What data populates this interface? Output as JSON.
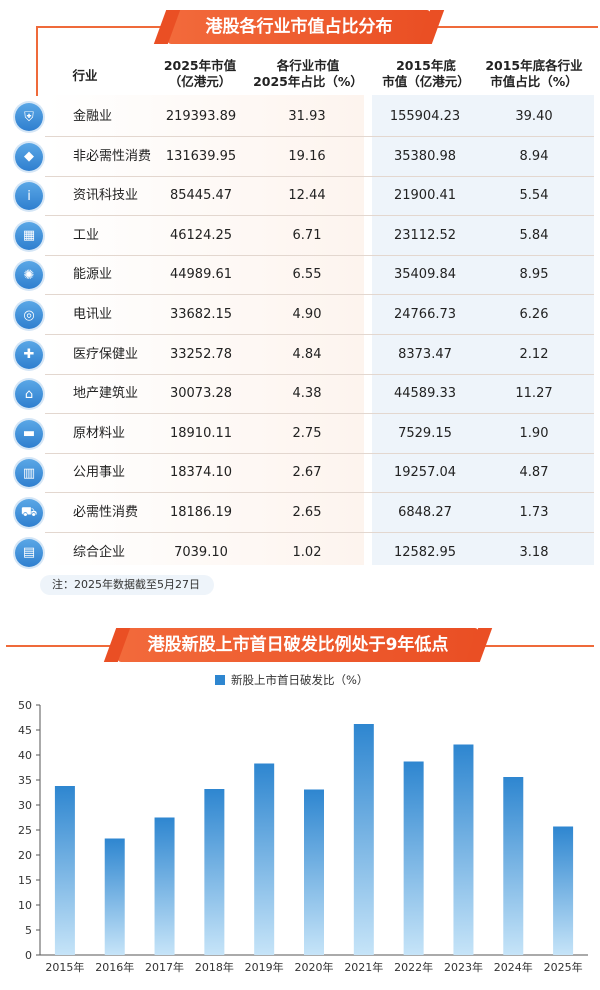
{
  "table_title": "港股各行业市值占比分布",
  "headers": {
    "industry": "行业",
    "mv2025_line1": "2025年市值",
    "mv2025_line2": "（亿港元）",
    "pct2025_line1": "各行业市值",
    "pct2025_line2": "2025年占比（%）",
    "mv2015_line1": "2015年底",
    "mv2015_line2": "市值（亿港元）",
    "pct2015_line1": "2015年底各行业",
    "pct2015_line2": "市值占比（%）"
  },
  "rows": [
    {
      "name": "金融业",
      "icon": "shield-icon",
      "mv2025": "219393.89",
      "pct2025": "31.93",
      "mv2015": "155904.23",
      "pct2015": "39.40"
    },
    {
      "name": "非必需性消费",
      "icon": "diamond-icon",
      "mv2025": "131639.95",
      "pct2025": "19.16",
      "mv2015": "35380.98",
      "pct2015": "8.94"
    },
    {
      "name": "资讯科技业",
      "icon": "info-icon",
      "mv2025": "85445.47",
      "pct2025": "12.44",
      "mv2015": "21900.41",
      "pct2015": "5.54"
    },
    {
      "name": "工业",
      "icon": "factory-icon",
      "mv2025": "46124.25",
      "pct2025": "6.71",
      "mv2015": "23112.52",
      "pct2015": "5.84"
    },
    {
      "name": "能源业",
      "icon": "bulb-icon",
      "mv2025": "44989.61",
      "pct2025": "6.55",
      "mv2015": "35409.84",
      "pct2015": "8.95"
    },
    {
      "name": "电讯业",
      "icon": "globe-icon",
      "mv2025": "33682.15",
      "pct2025": "4.90",
      "mv2015": "24766.73",
      "pct2015": "6.26"
    },
    {
      "name": "医疗保健业",
      "icon": "medkit-icon",
      "mv2025": "33252.78",
      "pct2025": "4.84",
      "mv2015": "8373.47",
      "pct2015": "2.12"
    },
    {
      "name": "地产建筑业",
      "icon": "house-icon",
      "mv2025": "30073.28",
      "pct2025": "4.38",
      "mv2015": "44589.33",
      "pct2015": "11.27"
    },
    {
      "name": "原材料业",
      "icon": "truck-icon",
      "mv2025": "18910.11",
      "pct2025": "2.75",
      "mv2015": "7529.15",
      "pct2015": "1.90"
    },
    {
      "name": "公用事业",
      "icon": "buildings-icon",
      "mv2025": "18374.10",
      "pct2025": "2.67",
      "mv2015": "19257.04",
      "pct2015": "4.87"
    },
    {
      "name": "必需性消费",
      "icon": "cart-icon",
      "mv2025": "18186.19",
      "pct2025": "2.65",
      "mv2015": "6848.27",
      "pct2015": "1.73"
    },
    {
      "name": "综合企业",
      "icon": "office-icon",
      "mv2025": "7039.10",
      "pct2025": "1.02",
      "mv2015": "12582.95",
      "pct2015": "3.18"
    }
  ],
  "note": "注：2025年数据截至5月27日",
  "chart_title": "港股新股上市首日破发比例处于9年低点",
  "colors": {
    "accent": "#ea4f24",
    "bar_top": "#2e86d0",
    "bar_bottom": "#bfe0f7",
    "icon_blue": "#2f7fcf"
  },
  "chart_data": {
    "type": "bar",
    "title": "港股新股上市首日破发比例处于9年低点",
    "categories": [
      "2015年",
      "2016年",
      "2017年",
      "2018年",
      "2019年",
      "2020年",
      "2021年",
      "2022年",
      "2023年",
      "2024年",
      "2025年"
    ],
    "series": [
      {
        "name": "新股上市首日破发比（%）",
        "values": [
          33.8,
          23.3,
          27.5,
          33.2,
          38.3,
          33.1,
          46.2,
          38.7,
          42.1,
          35.6,
          25.7
        ]
      }
    ],
    "ylim": [
      0,
      50
    ],
    "yticks": [
      0,
      5,
      10,
      15,
      20,
      25,
      30,
      35,
      40,
      45,
      50
    ],
    "grid": false,
    "legend": "top-center"
  }
}
